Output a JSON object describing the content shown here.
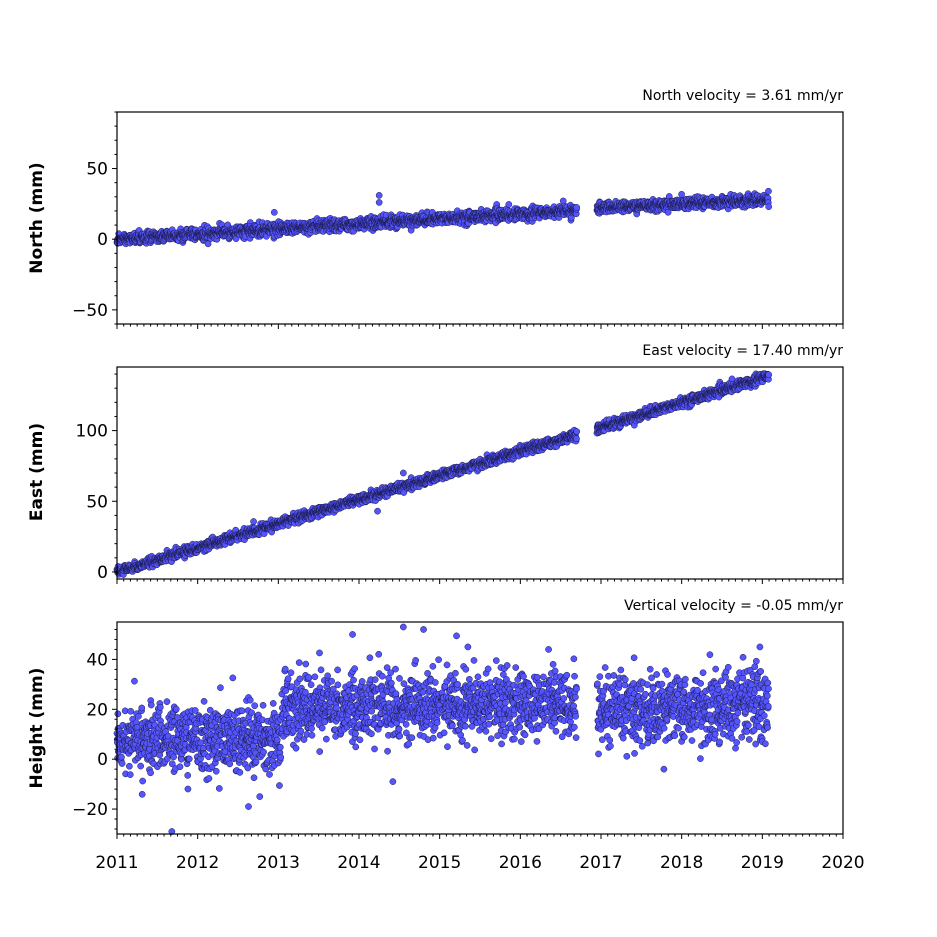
{
  "marker_color": "#5555ff",
  "marker_edge": "#1a1a4a",
  "chart_data": [
    {
      "type": "scatter",
      "title": "North velocity = 3.61 mm/yr",
      "ylabel": "North (mm)",
      "xlim": [
        2011,
        2020
      ],
      "ylim": [
        -60,
        90
      ],
      "yticks": [
        -50,
        0,
        50
      ],
      "ytick_labels": [
        "−50",
        "0",
        "50"
      ],
      "velocity_mm_per_yr": 3.61,
      "series": [
        {
          "segments": [
            {
              "x_start": 2011.0,
              "x_end": 2016.7,
              "y_start": 0,
              "y_end": 20.5,
              "noise": 2.0
            },
            {
              "x_start": 2016.95,
              "x_end": 2019.08,
              "y_start": 22,
              "y_end": 28,
              "noise": 1.8
            }
          ],
          "outliers": [
            {
              "x": 2014.25,
              "y": 31
            },
            {
              "x": 2014.25,
              "y": 26
            },
            {
              "x": 2012.95,
              "y": 19
            }
          ]
        }
      ]
    },
    {
      "type": "scatter",
      "title": "East velocity = 17.40 mm/yr",
      "ylabel": "East (mm)",
      "xlim": [
        2011,
        2020
      ],
      "ylim": [
        -5,
        145
      ],
      "yticks": [
        0,
        50,
        100
      ],
      "ytick_labels": [
        "0",
        "50",
        "100"
      ],
      "velocity_mm_per_yr": 17.4,
      "series": [
        {
          "segments": [
            {
              "x_start": 2011.0,
              "x_end": 2016.7,
              "y_start": 0,
              "y_end": 97,
              "noise": 1.6
            },
            {
              "x_start": 2016.95,
              "x_end": 2019.08,
              "y_start": 101,
              "y_end": 139,
              "noise": 1.6
            }
          ],
          "outliers": [
            {
              "x": 2014.23,
              "y": 43
            },
            {
              "x": 2014.55,
              "y": 70
            }
          ]
        }
      ]
    },
    {
      "type": "scatter",
      "title": "Vertical velocity = -0.05 mm/yr",
      "ylabel": "Height (mm)",
      "xlim": [
        2011,
        2020
      ],
      "ylim": [
        -30,
        55
      ],
      "yticks": [
        -20,
        0,
        20,
        40
      ],
      "ytick_labels": [
        "−20",
        "0",
        "20",
        "40"
      ],
      "velocity_mm_per_yr": -0.05,
      "series": [
        {
          "segments": [
            {
              "x_start": 2011.0,
              "x_end": 2013.05,
              "y_start": 8,
              "y_end": 8,
              "noise": 6.5
            },
            {
              "x_start": 2013.05,
              "x_end": 2016.7,
              "y_start": 21,
              "y_end": 22,
              "noise": 6.5
            },
            {
              "x_start": 2016.95,
              "x_end": 2019.08,
              "y_start": 20,
              "y_end": 21,
              "noise": 7
            }
          ],
          "outliers": [
            {
              "x": 2011.68,
              "y": -29
            },
            {
              "x": 2013.92,
              "y": 50
            },
            {
              "x": 2014.55,
              "y": 53
            },
            {
              "x": 2014.8,
              "y": 52
            },
            {
              "x": 2015.35,
              "y": 45
            },
            {
              "x": 2016.35,
              "y": 44
            },
            {
              "x": 2018.97,
              "y": 45
            },
            {
              "x": 2014.42,
              "y": -9
            },
            {
              "x": 2012.63,
              "y": -19
            },
            {
              "x": 2012.77,
              "y": -15
            },
            {
              "x": 2017.78,
              "y": -4
            }
          ]
        }
      ]
    }
  ],
  "x_axis": {
    "ticks": [
      2011,
      2012,
      2013,
      2014,
      2015,
      2016,
      2017,
      2018,
      2019,
      2020
    ],
    "tick_labels": [
      "2011",
      "2012",
      "2013",
      "2014",
      "2015",
      "2016",
      "2017",
      "2018",
      "2019",
      "2020"
    ]
  }
}
